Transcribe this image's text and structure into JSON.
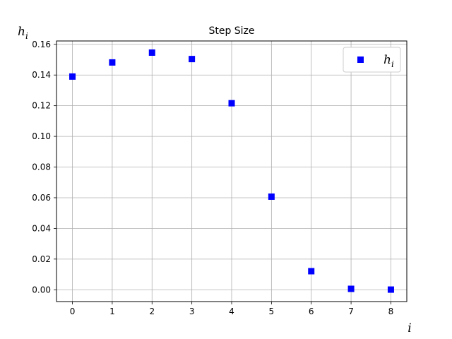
{
  "chart_data": {
    "type": "scatter",
    "title": "Step Size",
    "xlabel": "i",
    "ylabel": "h",
    "ylabel_subscript": "i",
    "marker": "square",
    "color": "#0000ff",
    "grid": true,
    "legend_placement": "top-right",
    "xlim": [
      -0.4,
      8.4
    ],
    "ylim": [
      -0.0077,
      0.1622
    ],
    "x_ticks": [
      0,
      1,
      2,
      3,
      4,
      5,
      6,
      7,
      8
    ],
    "y_ticks": [
      "0.00",
      "0.02",
      "0.04",
      "0.06",
      "0.08",
      "0.10",
      "0.12",
      "0.14",
      "0.16"
    ],
    "series": [
      {
        "name": "h",
        "name_subscript": "i",
        "x": [
          0,
          1,
          2,
          3,
          4,
          5,
          6,
          7,
          8
        ],
        "y": [
          0.139,
          0.1482,
          0.1546,
          0.1504,
          0.1216,
          0.0607,
          0.0121,
          0.0006,
          0.0001
        ]
      }
    ]
  }
}
